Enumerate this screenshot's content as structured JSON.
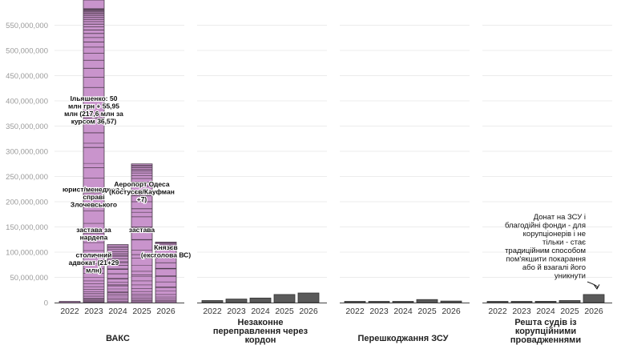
{
  "chart_data": {
    "type": "bar",
    "stacked": true,
    "unit": "грн",
    "ylim": [
      0,
      600000000
    ],
    "yticks": [
      {
        "value": 0,
        "label": "0"
      },
      {
        "value": 50000000,
        "label": "50,000,000"
      },
      {
        "value": 100000000,
        "label": "100,000,000"
      },
      {
        "value": 150000000,
        "label": "150,000,000"
      },
      {
        "value": 200000000,
        "label": "200,000,000"
      },
      {
        "value": 250000000,
        "label": "250,000,000"
      },
      {
        "value": 300000000,
        "label": "300,000,000"
      },
      {
        "value": 350000000,
        "label": "350,000,000"
      },
      {
        "value": 400000000,
        "label": "400,000,000"
      },
      {
        "value": 450000000,
        "label": "450,000,000"
      },
      {
        "value": 500000000,
        "label": "500,000,000"
      },
      {
        "value": 550000000,
        "label": "550,000,000"
      }
    ],
    "categories": [
      "2022",
      "2023",
      "2024",
      "2025",
      "2026"
    ],
    "grid": true,
    "colors": {
      "vaks": "#c994cc",
      "other": "#5a5a5a",
      "segment_line": "#4a3a4a"
    },
    "panels": [
      {
        "title": "ВАКС",
        "totals": [
          2000000,
          600000000,
          115000000,
          275000000,
          120000000
        ],
        "segments": [
          [
            2000000
          ],
          [
            217600000,
            50000000,
            40000000,
            29000000,
            35000000,
            30000000,
            25000000,
            20000000,
            18000000,
            16000000,
            14000000,
            12000000,
            10000000,
            9000000,
            8000000,
            7000000,
            6000000,
            5500000,
            5000000,
            4500000,
            4000000,
            3500000,
            3000000,
            2500000,
            2000000,
            2000000,
            1500000,
            1500000,
            1000000,
            1000000
          ],
          [
            20000000,
            15000000,
            12000000,
            10000000,
            9000000,
            8000000,
            7000000,
            6000000,
            5000000,
            5000000,
            4000000,
            4000000,
            3500000,
            3000000,
            2500000
          ],
          [
            55000000,
            40000000,
            30000000,
            25000000,
            20000000,
            16000000,
            14000000,
            12000000,
            10000000,
            9000000,
            8000000,
            7000000,
            6000000,
            5000000,
            4000000,
            3500000,
            3000000,
            2500000,
            2000000,
            2000000
          ],
          [
            30000000,
            22000000,
            15000000,
            12000000,
            10000000,
            8000000,
            7000000,
            5000000,
            4000000,
            3000000,
            2000000,
            2000000
          ]
        ]
      },
      {
        "title": "Незаконне переправлення через кордон",
        "totals": [
          4000000,
          7000000,
          9000000,
          16000000,
          19000000
        ],
        "segments": []
      },
      {
        "title": "Перешкоджання ЗСУ",
        "totals": [
          200000,
          300000,
          2000000,
          6000000,
          3000000
        ],
        "segments": []
      },
      {
        "title": "Решта судів із корупційними провадженнями",
        "totals": [
          600000,
          1500000,
          2500000,
          4000000,
          16000000
        ],
        "segments": []
      }
    ],
    "annotations": [
      {
        "panel": 0,
        "category": "2023",
        "value": 400000000,
        "lines": [
          "Ільяшенко: 50",
          "млн грн + 55,95",
          "млн (217,6 млн за",
          "курсом 36,57)"
        ]
      },
      {
        "panel": 0,
        "category": "2023",
        "value": 220000000,
        "lines": [
          "юрист/менеджер у",
          "справі",
          "Злочевського"
        ]
      },
      {
        "panel": 0,
        "category": "2023",
        "value": 140000000,
        "lines": [
          "застава за",
          "нардепа"
        ]
      },
      {
        "panel": 0,
        "category": "2023",
        "value": 90000000,
        "lines": [
          "столичний",
          "адвокат (21+29",
          "млн)"
        ]
      },
      {
        "panel": 0,
        "category": "2025",
        "value": 230000000,
        "lines": [
          "Аеропорт Одеса",
          "(Костусєв/Кауфман",
          "+7)"
        ]
      },
      {
        "panel": 0,
        "category": "2025",
        "value": 140000000,
        "lines": [
          "застава"
        ]
      },
      {
        "panel": 0,
        "category": "2026",
        "value": 105000000,
        "lines": [
          "Князєв",
          "(ексголова ВС)"
        ]
      },
      {
        "panel": 3,
        "category": "2026",
        "value": 165000000,
        "lines": [
          "Донат на ЗСУ і",
          "благодійні фонди - для",
          "корупціонерів і не",
          "тільки - стає",
          "традиційним способом",
          "пом'якшити покарання",
          "або й взагалі його",
          "уникнути"
        ]
      }
    ]
  }
}
